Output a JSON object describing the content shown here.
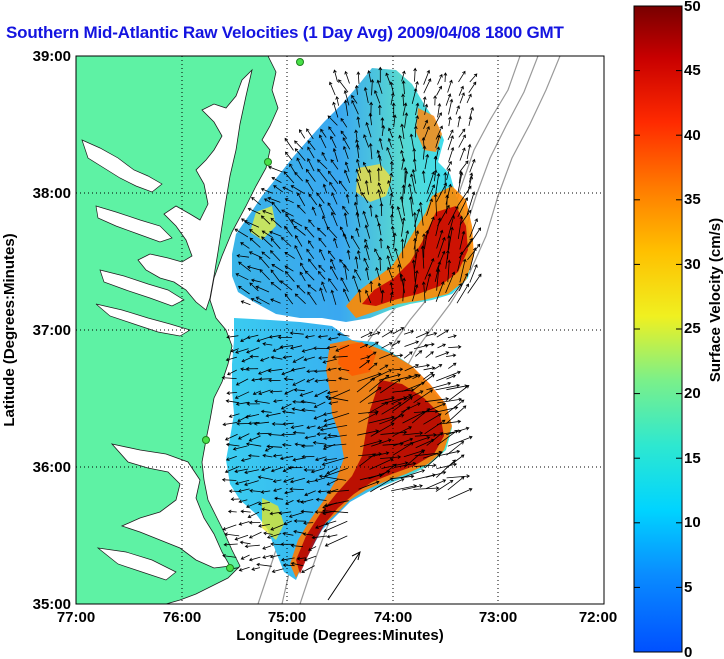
{
  "title": "Southern Mid-Atlantic Raw Velocities (1 Day Avg) 2009/04/08 1800 GMT",
  "xlabel": "Longitude (Degrees:Minutes)",
  "ylabel": "Latitude (Degrees:Minutes)",
  "colorbar_label": "Surface Velocity (cm/s)",
  "x_ticks": [
    "77:00",
    "76:00",
    "75:00",
    "74:00",
    "73:00",
    "72:00"
  ],
  "y_ticks": [
    "39:00",
    "38:00",
    "37:00",
    "36:00",
    "35:00"
  ],
  "colorbar_ticks": [
    "0",
    "5",
    "10",
    "15",
    "20",
    "25",
    "30",
    "35",
    "40",
    "45",
    "50"
  ],
  "colors": {
    "land": "#5ef2a4",
    "title": "#1414e0",
    "bathymetry": "#9a9a9a",
    "grid": "#000000"
  },
  "chart_data": {
    "type": "heatmap",
    "title": "Southern Mid-Atlantic Raw Velocities (1 Day Avg) 2009/04/08 1800 GMT",
    "xlabel": "Longitude (Degrees:Minutes)",
    "ylabel": "Latitude (Degrees:Minutes)",
    "xlim": [
      -77,
      -72
    ],
    "ylim": [
      35,
      39
    ],
    "grid": true,
    "colorbar": {
      "label": "Surface Velocity (cm/s)",
      "range": [
        0,
        50
      ],
      "colormap": "jet"
    },
    "field": "surface current vectors colored by speed"
  }
}
